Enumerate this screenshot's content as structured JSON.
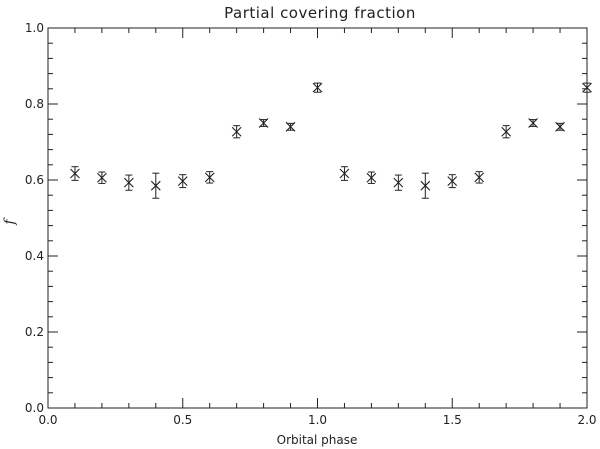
{
  "chart_data": {
    "type": "scatter",
    "title": "Partial covering fraction",
    "xlabel": "Orbital phase",
    "ylabel": "f",
    "xlim": [
      0.0,
      2.0
    ],
    "ylim": [
      0.0,
      1.0
    ],
    "xticks": [
      0.0,
      0.5,
      1.0,
      1.5,
      2.0
    ],
    "xtick_labels": [
      "0.0",
      "0.5",
      "1.0",
      "1.5",
      "2.0"
    ],
    "yticks": [
      0.0,
      0.2,
      0.4,
      0.6,
      0.8,
      1.0
    ],
    "ytick_labels": [
      "0.0",
      "0.2",
      "0.4",
      "0.6",
      "0.8",
      "1.0"
    ],
    "marker": "x",
    "error_bars": "vertical",
    "grid": false,
    "points": [
      {
        "x": 0.1,
        "y": 0.617,
        "err": 0.018
      },
      {
        "x": 0.2,
        "y": 0.606,
        "err": 0.015
      },
      {
        "x": 0.3,
        "y": 0.593,
        "err": 0.02
      },
      {
        "x": 0.4,
        "y": 0.585,
        "err": 0.033
      },
      {
        "x": 0.5,
        "y": 0.597,
        "err": 0.017
      },
      {
        "x": 0.6,
        "y": 0.607,
        "err": 0.015
      },
      {
        "x": 0.7,
        "y": 0.727,
        "err": 0.016
      },
      {
        "x": 0.8,
        "y": 0.75,
        "err": 0.009
      },
      {
        "x": 0.9,
        "y": 0.74,
        "err": 0.009
      },
      {
        "x": 1.0,
        "y": 0.843,
        "err": 0.012
      },
      {
        "x": 1.1,
        "y": 0.617,
        "err": 0.018
      },
      {
        "x": 1.2,
        "y": 0.606,
        "err": 0.015
      },
      {
        "x": 1.3,
        "y": 0.593,
        "err": 0.02
      },
      {
        "x": 1.4,
        "y": 0.585,
        "err": 0.033
      },
      {
        "x": 1.5,
        "y": 0.597,
        "err": 0.017
      },
      {
        "x": 1.6,
        "y": 0.607,
        "err": 0.015
      },
      {
        "x": 1.7,
        "y": 0.727,
        "err": 0.016
      },
      {
        "x": 1.8,
        "y": 0.75,
        "err": 0.009
      },
      {
        "x": 1.9,
        "y": 0.74,
        "err": 0.009
      },
      {
        "x": 2.0,
        "y": 0.843,
        "err": 0.012
      }
    ]
  }
}
